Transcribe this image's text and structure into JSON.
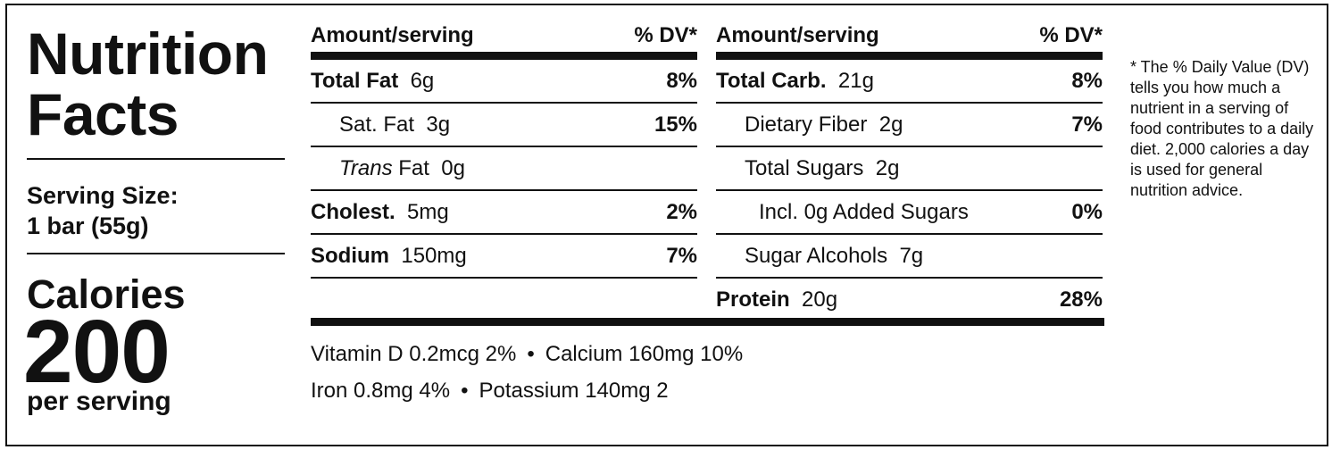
{
  "label": {
    "title_line1": "Nutrition",
    "title_line2": "Facts",
    "serving_label": "Serving Size:",
    "serving_value": "1 bar (55g)",
    "calories_label": "Calories",
    "calories_value": "200",
    "per_serving": "per serving"
  },
  "table_left": {
    "header_amount": "Amount/serving",
    "header_dv": "% DV*",
    "rows": [
      {
        "name_bold": "Total Fat",
        "amount": "6g",
        "dv": "8%"
      },
      {
        "name": "Sat. Fat",
        "amount": "3g",
        "dv": "15%"
      },
      {
        "name_italic": "Trans",
        "name": "Fat",
        "amount": "0g",
        "dv": ""
      },
      {
        "name_bold": "Cholest.",
        "amount": "5mg",
        "dv": "2%"
      },
      {
        "name_bold": "Sodium",
        "amount": "150mg",
        "dv": "7%"
      }
    ]
  },
  "table_right": {
    "header_amount": "Amount/serving",
    "header_dv": "% DV*",
    "rows": [
      {
        "name_bold": "Total Carb.",
        "amount": "21g",
        "dv": "8%"
      },
      {
        "name": "Dietary Fiber",
        "amount": "2g",
        "dv": "7%"
      },
      {
        "name": "Total Sugars",
        "amount": "2g",
        "dv": ""
      },
      {
        "name": "Incl. 0g Added Sugars",
        "amount": "",
        "dv": "0%"
      },
      {
        "name": "Sugar Alcohols",
        "amount": "7g",
        "dv": ""
      },
      {
        "name_bold": "Protein",
        "amount": "20g",
        "dv": "28%"
      }
    ]
  },
  "vitamins": {
    "line1_a": "Vitamin D 0.2mcg 2%",
    "line1_b": "Calcium 160mg 10%",
    "line2_a": "Iron 0.8mg 4%",
    "line2_b": "Potassium 140mg 2",
    "separator": "•"
  },
  "footnote": "* The % Daily Value (DV) tells you how much a nutrient in a serving of food contributes to a daily diet. 2,000 calories a day is used for general nutrition advice."
}
